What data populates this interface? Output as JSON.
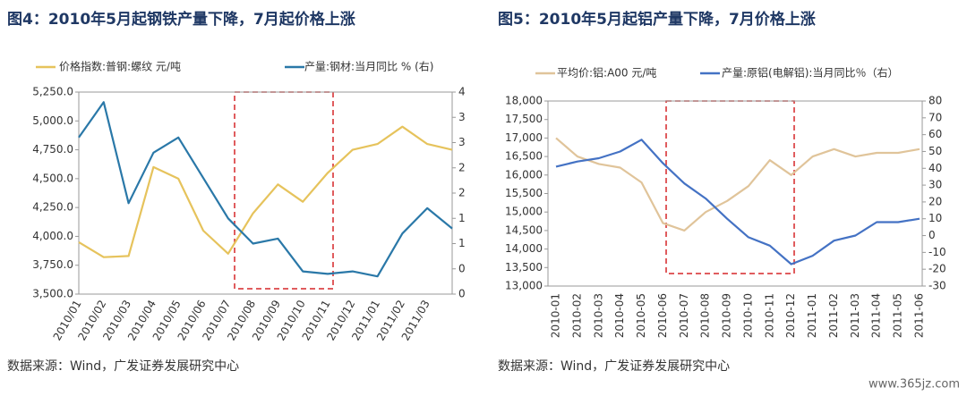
{
  "chart_data": [
    {
      "type": "line",
      "title": "图4：2010年5月起钢铁产量下降，7月起价格上涨",
      "categories": [
        "2010/01",
        "2010/02",
        "2010/03",
        "2010/04",
        "2010/05",
        "2010/06",
        "2010/07",
        "2010/08",
        "2010/09",
        "2010/10",
        "2010/11",
        "2010/12",
        "2011/01",
        "2011/02",
        "2011/03",
        null
      ],
      "series": [
        {
          "name": "价格指数:普钢:螺纹 元/吨",
          "color": "#e6c35c",
          "values": [
            3950,
            3820,
            3830,
            4600,
            4500,
            4050,
            3850,
            4200,
            4450,
            4300,
            4550,
            4750,
            4800,
            4950,
            4800,
            4750
          ]
        },
        {
          "name": "产量:钢材:当月同比 % (右)",
          "color": "#2a78a8",
          "axis": "y2",
          "values": [
            3.1,
            3.8,
            1.8,
            2.8,
            3.1,
            2.3,
            1.5,
            1.0,
            1.1,
            0.45,
            0.4,
            0.45,
            0.35,
            1.2,
            1.7,
            1.3
          ]
        }
      ],
      "ylim": [
        3500,
        5250
      ],
      "yticks": [
        {
          "value": 3500,
          "label": "3,500.0"
        },
        {
          "value": 3750,
          "label": "3,750.0"
        },
        {
          "value": 4000,
          "label": "4,000.0"
        },
        {
          "value": 4250,
          "label": "4,250.0"
        },
        {
          "value": 4500,
          "label": "4,500.0"
        },
        {
          "value": 4750,
          "label": "4,750.0"
        },
        {
          "value": 5000,
          "label": "5,000.0"
        },
        {
          "value": 5250,
          "label": "5,250.0"
        }
      ],
      "y2lim": [
        0,
        4
      ],
      "y2ticks": [
        0,
        {
          "value": 0.5,
          "label": "0"
        },
        1,
        {
          "value": 1.5,
          "label": "1"
        },
        2,
        {
          "value": 2.5,
          "label": "2"
        },
        3,
        {
          "value": 3.5,
          "label": "3"
        },
        4
      ],
      "source": "数据来源：Wind，广发证券发展研究中心"
    },
    {
      "type": "line",
      "title": "图5：2010年5月起铝产量下降，7月价格上涨",
      "categories": [
        "2010-01",
        "2010-02",
        "2010-03",
        "2010-04",
        "2010-05",
        "2010-06",
        "2010-07",
        "2010-08",
        "2010-09",
        "2010-10",
        "2010-11",
        "2010-12",
        "2011-01",
        "2011-02",
        "2011-03",
        "2011-04",
        "2011-05",
        "2011-06"
      ],
      "series": [
        {
          "name": "平均价:铝:A00 元/吨",
          "color": "#e0c49a",
          "values": [
            17000,
            16500,
            16300,
            16200,
            15800,
            14700,
            14500,
            15000,
            15300,
            15700,
            16400,
            16000,
            16500,
            16700,
            16500,
            16600,
            16600,
            16700
          ]
        },
        {
          "name": "产量:原铝(电解铝):当月同比％（右）",
          "color": "#4472c4",
          "axis": "y2",
          "values": [
            41,
            44,
            46,
            50,
            57,
            43,
            31,
            22,
            10,
            -1,
            -6,
            -17,
            -12,
            -3,
            0,
            8,
            8,
            10
          ]
        }
      ],
      "ylim": [
        13000,
        18000
      ],
      "yticks": [
        {
          "value": 13000,
          "label": "13,000"
        },
        {
          "value": 13500,
          "label": "13,500"
        },
        {
          "value": 14000,
          "label": "14,000"
        },
        {
          "value": 14500,
          "label": "14,500"
        },
        {
          "value": 15000,
          "label": "15,000"
        },
        {
          "value": 15500,
          "label": "15,500"
        },
        {
          "value": 16000,
          "label": "16,000"
        },
        {
          "value": 16500,
          "label": "16,500"
        },
        {
          "value": 17000,
          "label": "17,000"
        },
        {
          "value": 17500,
          "label": "17,500"
        },
        {
          "value": 18000,
          "label": "18,000"
        }
      ],
      "y2lim": [
        -30,
        80
      ],
      "y2ticks": [
        -30,
        -20,
        -10,
        0,
        10,
        20,
        30,
        40,
        50,
        60,
        70,
        80
      ],
      "source": "数据来源：Wind，广发证券发展研究中心"
    }
  ],
  "watermark": "www.365jz.com"
}
